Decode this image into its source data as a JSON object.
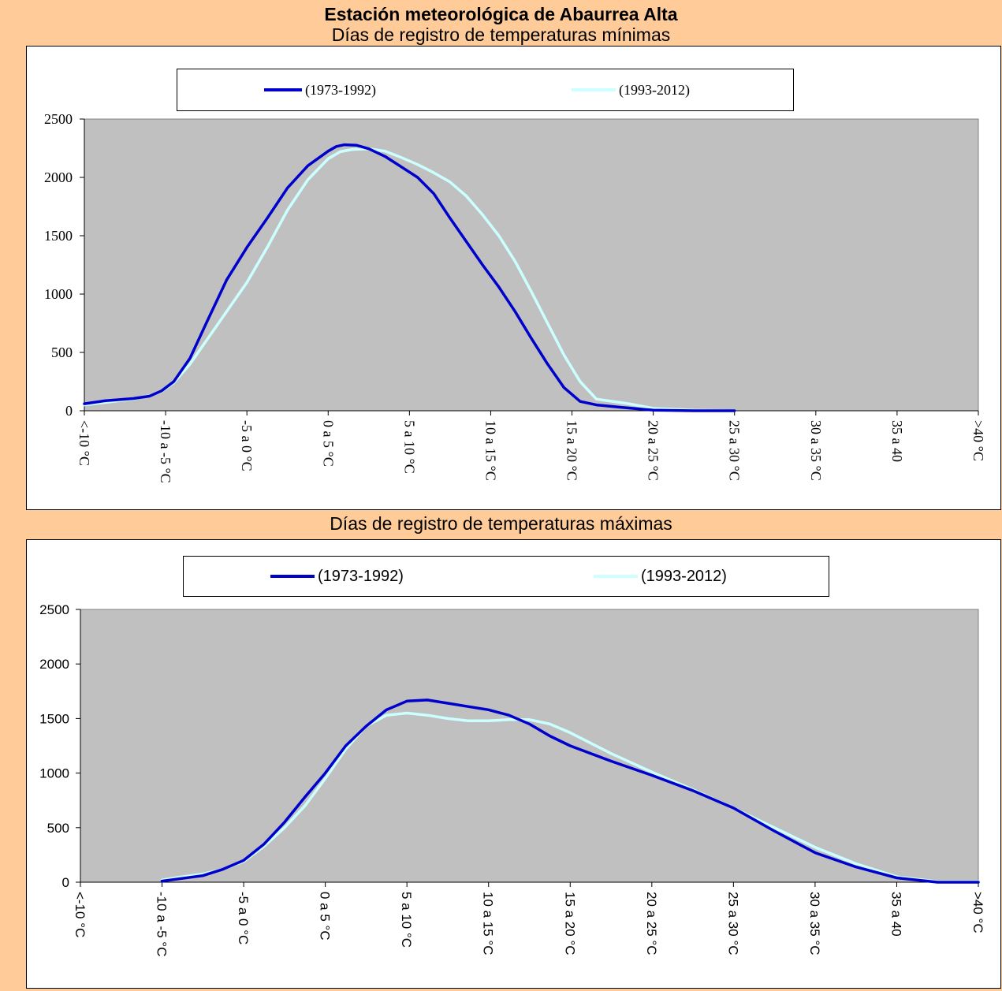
{
  "header": {
    "title": "Estación meteorológica de Abaurrea Alta",
    "subtitle_min": "Días de registro de temperaturas mínimas",
    "subtitle_max": "Días de registro de temperaturas máximas"
  },
  "colors": {
    "background": "#FFCC99",
    "plot_area": "#C0C0C0",
    "series_1973_1992": "#0000CC",
    "series_1993_2012": "#CCFFFF"
  },
  "chart_data": [
    {
      "type": "line",
      "title": "Días de registro de temperaturas mínimas",
      "categories": [
        "<-10 °C",
        "-10 a -5 °C",
        "-5 a 0 °C",
        "0 a 5 °C",
        "5 a 10 °C",
        "10 a 15 °C",
        "15 a 20 °C",
        "20 a 25 °C",
        "25 a 30 °C",
        "30 a 35 °C",
        "35 a 40",
        ">40 °C"
      ],
      "ylim": [
        0,
        2500
      ],
      "yticks": [
        0,
        500,
        1000,
        1500,
        2000,
        2500
      ],
      "grid": false,
      "legend_position": "top-center",
      "series": [
        {
          "name": "(1973-1992)",
          "color": "#0000CC",
          "x": [
            0,
            0.25,
            0.6,
            0.8,
            0.95,
            1.1,
            1.3,
            1.5,
            1.75,
            2.0,
            2.25,
            2.5,
            2.75,
            3.0,
            3.1,
            3.2,
            3.35,
            3.5,
            3.7,
            3.9,
            4.1,
            4.3,
            4.5,
            4.7,
            4.9,
            5.1,
            5.3,
            5.5,
            5.7,
            5.9,
            6.1,
            6.3,
            6.6,
            7.0,
            7.5,
            8.0
          ],
          "values": [
            60,
            85,
            105,
            125,
            170,
            250,
            450,
            750,
            1120,
            1400,
            1650,
            1910,
            2100,
            2225,
            2265,
            2280,
            2275,
            2245,
            2180,
            2090,
            2000,
            1860,
            1650,
            1450,
            1250,
            1060,
            850,
            620,
            400,
            200,
            80,
            50,
            30,
            5,
            0,
            0
          ]
        },
        {
          "name": "(1993-2012)",
          "color": "#CCFFFF",
          "x": [
            0,
            0.6,
            0.8,
            0.95,
            1.1,
            1.3,
            1.5,
            1.75,
            2.0,
            2.25,
            2.5,
            2.75,
            3.0,
            3.15,
            3.3,
            3.5,
            3.7,
            3.9,
            4.1,
            4.3,
            4.5,
            4.7,
            4.9,
            5.1,
            5.3,
            5.5,
            5.7,
            5.9,
            6.1,
            6.3,
            6.7,
            7.0,
            7.5,
            8.0
          ],
          "values": [
            50,
            100,
            130,
            165,
            240,
            400,
            600,
            850,
            1100,
            1400,
            1720,
            1980,
            2160,
            2220,
            2240,
            2245,
            2225,
            2170,
            2110,
            2040,
            1960,
            1840,
            1680,
            1500,
            1280,
            1020,
            750,
            480,
            250,
            100,
            60,
            20,
            5,
            0
          ]
        }
      ]
    },
    {
      "type": "line",
      "title": "Días de registro de temperaturas máximas",
      "categories": [
        "<-10 °C",
        "-10 a -5 °C",
        "-5 a 0 °C",
        "0 a 5 °C",
        "5 a 10 °C",
        "10 a 15 °C",
        "15 a 20 °C",
        "20 a 25 °C",
        "25 a 30 °C",
        "30 a 35 °C",
        "35 a 40",
        ">40 °C"
      ],
      "ylim": [
        0,
        2500
      ],
      "yticks": [
        0,
        500,
        1000,
        1500,
        2000,
        2500
      ],
      "grid": false,
      "legend_position": "top-center",
      "series": [
        {
          "name": "(1973-1992)",
          "color": "#0000CC",
          "x": [
            1.0,
            1.2,
            1.5,
            1.75,
            2.0,
            2.25,
            2.5,
            2.75,
            3.0,
            3.25,
            3.5,
            3.75,
            4.0,
            4.25,
            4.5,
            4.75,
            5.0,
            5.25,
            5.5,
            5.75,
            6.0,
            6.5,
            7.0,
            7.5,
            8.0,
            8.5,
            9.0,
            9.5,
            10.0,
            10.5,
            11.0
          ],
          "values": [
            10,
            30,
            60,
            120,
            200,
            350,
            550,
            780,
            1000,
            1250,
            1430,
            1580,
            1660,
            1670,
            1640,
            1610,
            1580,
            1530,
            1450,
            1340,
            1250,
            1110,
            980,
            840,
            680,
            470,
            270,
            140,
            40,
            0,
            0
          ]
        },
        {
          "name": "(1993-2012)",
          "color": "#CCFFFF",
          "x": [
            1.0,
            1.2,
            1.5,
            1.75,
            2.0,
            2.25,
            2.5,
            2.75,
            3.0,
            3.25,
            3.5,
            3.75,
            4.0,
            4.25,
            4.5,
            4.75,
            5.0,
            5.25,
            5.5,
            5.75,
            6.0,
            6.5,
            7.0,
            7.5,
            8.0,
            8.5,
            9.0,
            9.5,
            10.0,
            10.5,
            11.0
          ],
          "values": [
            20,
            45,
            75,
            120,
            190,
            330,
            500,
            700,
            950,
            1220,
            1430,
            1530,
            1550,
            1530,
            1500,
            1480,
            1480,
            1490,
            1490,
            1450,
            1370,
            1180,
            1010,
            850,
            680,
            500,
            320,
            170,
            50,
            5,
            5
          ]
        }
      ]
    }
  ]
}
